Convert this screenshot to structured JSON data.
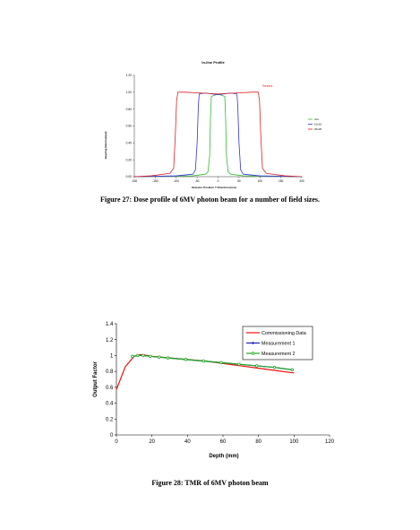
{
  "figures": [
    {
      "caption": "Figure 27: Dose profile of 6MV photon beam for a number of field sizes.",
      "chart_data": {
        "type": "line",
        "title": "In-line Profile",
        "xlabel": "Detector Position Y Direction (mm)",
        "ylabel": "Reading (Normalized)",
        "annotation": "Series",
        "xlim": [
          -200,
          200
        ],
        "ylim": [
          0,
          1.2
        ],
        "xticks": [
          "-200",
          "-150",
          "-100",
          "-50",
          "0",
          "50",
          "100",
          "150",
          "200"
        ],
        "yticks": [
          "0.00",
          "0.20",
          "0.40",
          "0.60",
          "0.80",
          "1.00",
          "1.20"
        ],
        "grid": false,
        "legend_position": "right",
        "colors": {
          "4x4": "#33bb33",
          "10x10": "#3333dd",
          "20x20": "#dd2222"
        },
        "series": [
          {
            "name": "4x4",
            "x": [
              -200,
              -60,
              -30,
              -24,
              -20,
              -18,
              -16,
              0,
              16,
              18,
              20,
              24,
              30,
              60,
              200
            ],
            "y": [
              0.0,
              0.01,
              0.03,
              0.06,
              0.25,
              0.7,
              0.95,
              0.98,
              0.95,
              0.7,
              0.25,
              0.06,
              0.03,
              0.01,
              0.0
            ]
          },
          {
            "name": "10x10",
            "x": [
              -200,
              -100,
              -60,
              -54,
              -50,
              -47,
              -45,
              -30,
              0,
              30,
              45,
              47,
              50,
              54,
              60,
              100,
              200
            ],
            "y": [
              0.0,
              0.01,
              0.03,
              0.08,
              0.4,
              0.85,
              0.98,
              0.99,
              0.97,
              0.99,
              0.98,
              0.85,
              0.4,
              0.08,
              0.03,
              0.01,
              0.0
            ]
          },
          {
            "name": "20x20",
            "x": [
              -200,
              -160,
              -115,
              -106,
              -102,
              -99,
              -96,
              -80,
              -40,
              0,
              40,
              80,
              96,
              99,
              102,
              106,
              115,
              160,
              200
            ],
            "y": [
              0.0,
              0.01,
              0.04,
              0.1,
              0.5,
              0.9,
              1.0,
              1.0,
              0.99,
              0.98,
              0.99,
              1.0,
              1.0,
              0.9,
              0.5,
              0.1,
              0.04,
              0.01,
              0.0
            ]
          }
        ]
      }
    },
    {
      "caption": "Figure 28: TMR of 6MV photon beam",
      "chart_data": {
        "type": "line",
        "xlabel": "Depth (mm)",
        "ylabel": "Output Factor",
        "xlim": [
          0,
          120
        ],
        "ylim": [
          0,
          1.4
        ],
        "xticks": [
          "0",
          "20",
          "40",
          "60",
          "80",
          "100",
          "120"
        ],
        "yticks": [
          "0",
          "0.2",
          "0.4",
          "0.6",
          "0.8",
          "1",
          "1.2",
          "1.4"
        ],
        "grid": false,
        "legend_position": "top-right",
        "colors": {
          "Commissioning Data": "#ee1111",
          "Measurement 1": "#2222bb",
          "Measurement 2": "#22aa22"
        },
        "series": [
          {
            "name": "Commissioning Data",
            "marker": "none",
            "x": [
              0,
              5,
              10,
              13,
              15,
              20,
              30,
              40,
              50,
              60,
              70,
              80,
              90,
              100
            ],
            "y": [
              0.57,
              0.86,
              0.99,
              1.01,
              1.01,
              0.99,
              0.97,
              0.95,
              0.93,
              0.9,
              0.87,
              0.84,
              0.81,
              0.78
            ]
          },
          {
            "name": "Measurement 1",
            "marker": "diamond",
            "x": [
              9,
              12,
              15,
              19,
              24,
              29,
              39,
              49,
              59,
              69,
              79,
              89,
              99
            ],
            "y": [
              0.99,
              1.0,
              1.0,
              0.99,
              0.98,
              0.97,
              0.95,
              0.93,
              0.91,
              0.89,
              0.87,
              0.85,
              0.82
            ]
          },
          {
            "name": "Measurement 2",
            "marker": "circle",
            "x": [
              9,
              12,
              15,
              19,
              24,
              29,
              39,
              49,
              59,
              69,
              79,
              89,
              99
            ],
            "y": [
              0.99,
              1.0,
              1.0,
              0.99,
              0.98,
              0.97,
              0.95,
              0.93,
              0.91,
              0.89,
              0.87,
              0.85,
              0.82
            ]
          }
        ]
      }
    }
  ]
}
